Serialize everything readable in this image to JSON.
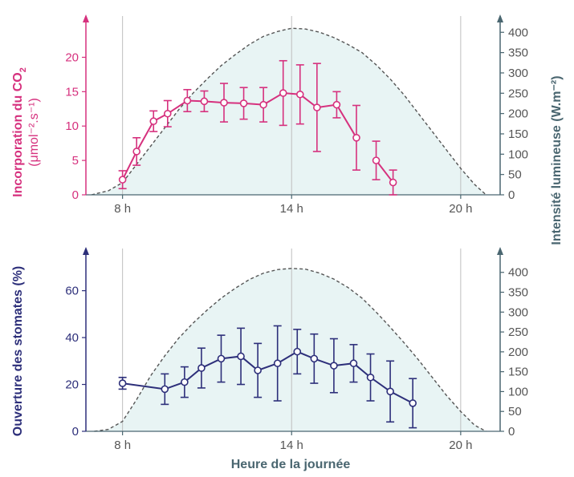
{
  "colors": {
    "co2": "#d6317e",
    "stomata": "#2d2f7a",
    "light_axis": "#4a6670",
    "light_curve": "#555555",
    "panel_fill": "#e8f4f4",
    "grid": "#bfbfbf",
    "tick_text": "#555555"
  },
  "xlabel": "Heure de la journée",
  "chart_data": [
    {
      "type": "line",
      "x_ticks": [
        "8 h",
        "14 h",
        "20 h"
      ],
      "x_tick_values": [
        8,
        14,
        20
      ],
      "xlim": [
        6.7,
        21.4
      ],
      "ylabel_left_line1": "Incorporation du CO",
      "ylabel_left_sub": "2",
      "ylabel_left_line2": "(μmol⁻².s⁻¹)",
      "ylim_left": [
        0,
        26
      ],
      "yticks_left": [
        "0",
        "5",
        "10",
        "15",
        "20"
      ],
      "ylabel_right": "Intensité lumineuse (W.m⁻²)",
      "ylim_right": [
        0,
        440
      ],
      "yticks_right": [
        "0",
        "50",
        "100",
        "150",
        "200",
        "250",
        "300",
        "350",
        "400"
      ],
      "grid": "vertical",
      "series": [
        {
          "axis": "left",
          "x": [
            8,
            8.5,
            9.1,
            9.6,
            10.3,
            10.9,
            11.6,
            12.3,
            13,
            13.7,
            14.3,
            14.9,
            15.6,
            16.3
          ],
          "values": [
            2.2,
            6.3,
            10.7,
            11.8,
            13.7,
            13.6,
            13.4,
            13.3,
            13.1,
            14.8,
            14.6,
            12.7,
            13.1,
            8.3
          ],
          "err": [
            1.3,
            2.0,
            1.5,
            1.9,
            1.6,
            1.5,
            2.8,
            2.3,
            2.5,
            4.7,
            4.3,
            6.4,
            1.9,
            4.7
          ]
        },
        {
          "axis": "left",
          "x": [
            17,
            17.6
          ],
          "values": [
            5.0,
            1.8
          ],
          "err": [
            2.8,
            1.8
          ]
        }
      ],
      "light_curve": {
        "axis": "right",
        "x": [
          6.9,
          7.5,
          8,
          8.5,
          9,
          9.5,
          10,
          10.5,
          11,
          11.5,
          12,
          12.5,
          13,
          13.5,
          14,
          14.5,
          15,
          15.5,
          16,
          16.5,
          17,
          17.5,
          18,
          18.5,
          19,
          19.5,
          20,
          20.5,
          20.9
        ],
        "values": [
          0,
          10,
          30,
          75,
          120,
          165,
          210,
          250,
          285,
          318,
          345,
          370,
          390,
          402,
          410,
          408,
          400,
          387,
          370,
          350,
          320,
          285,
          245,
          200,
          155,
          110,
          65,
          25,
          0
        ]
      }
    },
    {
      "type": "line",
      "x_ticks": [
        "8 h",
        "14 h",
        "20 h"
      ],
      "x_tick_values": [
        8,
        14,
        20
      ],
      "xlim": [
        6.7,
        21.4
      ],
      "ylabel_left": "Ouverture des stomates (%)",
      "ylim_left": [
        0,
        78
      ],
      "yticks_left": [
        "0",
        "20",
        "40",
        "60"
      ],
      "ylabel_right": "Intensité lumineuse (W.m⁻²)",
      "ylim_right": [
        0,
        460
      ],
      "yticks_right": [
        "0",
        "50",
        "100",
        "150",
        "200",
        "250",
        "300",
        "350",
        "400"
      ],
      "grid": "vertical",
      "series": [
        {
          "axis": "left",
          "x": [
            8,
            9.5,
            10.2,
            10.8,
            11.5,
            12.2,
            12.8,
            13.5,
            14.2,
            14.8,
            15.5,
            16.2,
            16.8,
            17.5,
            18.3
          ],
          "values": [
            20.5,
            18,
            21,
            27,
            31,
            32,
            26,
            29,
            34,
            31,
            28,
            29,
            23,
            17,
            12
          ],
          "err": [
            2.5,
            6.5,
            6.5,
            8.5,
            10,
            12,
            11.5,
            16,
            9.5,
            10.5,
            11.5,
            8,
            10,
            13,
            10.5
          ]
        }
      ],
      "light_curve": {
        "axis": "right",
        "x": [
          7,
          7.5,
          8,
          8.5,
          9,
          9.5,
          10,
          10.5,
          11,
          11.5,
          12,
          12.5,
          13,
          13.5,
          14,
          14.5,
          15,
          15.5,
          16,
          16.5,
          17,
          17.5,
          18,
          18.5,
          19,
          19.5,
          20,
          20.5,
          20.9
        ],
        "values": [
          0,
          5,
          25,
          80,
          140,
          190,
          235,
          272,
          305,
          335,
          360,
          382,
          398,
          407,
          410,
          408,
          398,
          383,
          362,
          335,
          300,
          262,
          222,
          180,
          135,
          90,
          50,
          15,
          0
        ]
      }
    }
  ]
}
